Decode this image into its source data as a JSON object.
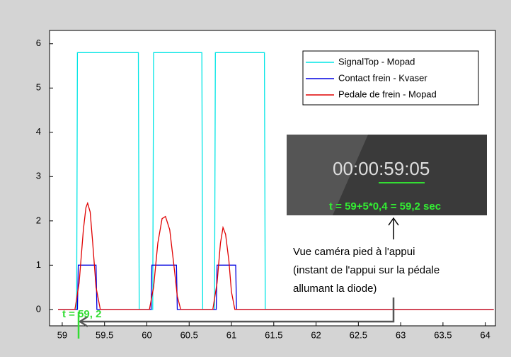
{
  "chart_data": {
    "type": "line",
    "xlim": [
      58.85,
      64.12
    ],
    "ylim": [
      -0.37,
      6.3
    ],
    "xticks": [
      59,
      59.5,
      60,
      60.5,
      61,
      61.5,
      62,
      62.5,
      63,
      63.5,
      64
    ],
    "yticks": [
      0,
      1,
      2,
      3,
      4,
      5,
      6
    ],
    "grid": false,
    "legend": "upper right",
    "series": [
      {
        "name": "SignalTop - Mopad",
        "color": "#00e5e5",
        "x": [
          58.95,
          59.17,
          59.18,
          59.9,
          59.91,
          60.07,
          60.08,
          60.65,
          60.66,
          60.8,
          60.81,
          61.39,
          61.4,
          64.1
        ],
        "values": [
          0,
          0,
          5.8,
          5.8,
          0,
          0,
          5.8,
          5.8,
          0,
          0,
          5.8,
          5.8,
          0,
          0
        ]
      },
      {
        "name": "Contact frein - Kvaser",
        "color": "#0000e0",
        "x": [
          58.95,
          59.18,
          59.19,
          59.4,
          59.41,
          60.05,
          60.06,
          60.35,
          60.36,
          60.82,
          60.83,
          61.05,
          61.06,
          64.1
        ],
        "values": [
          0,
          0,
          1,
          1,
          0,
          0,
          1,
          1,
          0,
          0,
          1,
          1,
          0,
          0
        ]
      },
      {
        "name": "Pedale de frein - Mopad",
        "color": "#e00000",
        "x": [
          58.95,
          59.15,
          59.2,
          59.25,
          59.28,
          59.3,
          59.33,
          59.36,
          59.4,
          59.45,
          60.03,
          60.08,
          60.13,
          60.18,
          60.22,
          60.27,
          60.32,
          60.36,
          60.4,
          60.78,
          60.83,
          60.87,
          60.9,
          60.93,
          60.97,
          61.0,
          61.04,
          64.1
        ],
        "values": [
          0,
          0,
          0.6,
          1.8,
          2.3,
          2.4,
          2.2,
          1.5,
          0.5,
          0,
          0,
          0.5,
          1.5,
          2.05,
          2.1,
          1.8,
          1.0,
          0.3,
          0,
          0,
          0.6,
          1.5,
          1.85,
          1.7,
          1.1,
          0.4,
          0,
          0
        ]
      }
    ],
    "inset_clock": "00:00:59:05",
    "inset_formula": "t = 59+5*0,4 = 59,2 sec",
    "note_lines": [
      "Vue caméra pied à l'appui",
      "(instant de l'appui sur la pédale",
      "allumant la diode)"
    ],
    "marker_label": "t = 59, 2"
  }
}
